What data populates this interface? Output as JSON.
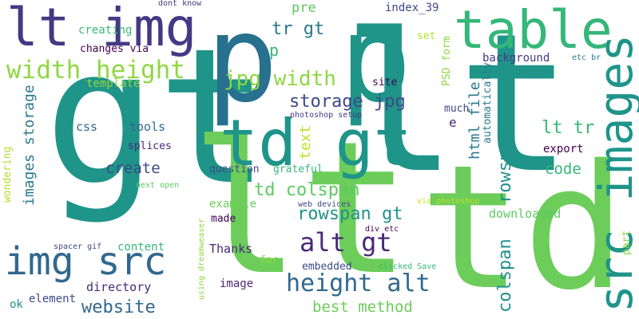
{
  "words": [
    {
      "id": "gt-large",
      "text": "gt",
      "color": "#1f9489"
    },
    {
      "id": "lt-large",
      "text": "lt",
      "color": "#6ccd5a"
    },
    {
      "id": "td-large",
      "text": "td",
      "color": "#6ccd5a"
    },
    {
      "id": "lt-center",
      "text": "lt",
      "color": "#1f9489"
    },
    {
      "id": "p-1",
      "text": "p",
      "color": "#27708e"
    },
    {
      "id": "p-2",
      "text": "p",
      "color": "#1f9489"
    },
    {
      "id": "lt-img",
      "text": "lt img",
      "color": "#443983"
    },
    {
      "id": "table",
      "text": "table",
      "color": "#35b779"
    },
    {
      "id": "src-images",
      "text": "src images",
      "color": "#1f9489"
    },
    {
      "id": "td-gt",
      "text": "td gt",
      "color": "#1f9489"
    },
    {
      "id": "img-src",
      "text": "img src",
      "color": "#31688e"
    },
    {
      "id": "width-height",
      "text": "width height",
      "color": "#90d743"
    },
    {
      "id": "jpg-width",
      "text": "jpg width",
      "color": "#90d743"
    },
    {
      "id": "height-alt",
      "text": "height alt",
      "color": "#31688e"
    },
    {
      "id": "alt-gt",
      "text": "alt gt",
      "color": "#482878"
    },
    {
      "id": "rowspan-gt",
      "text": "rowspan gt",
      "color": "#21918c"
    },
    {
      "id": "td-colspan",
      "text": "td colspan",
      "color": "#5ec962"
    },
    {
      "id": "storage-jpg",
      "text": "storage jpg",
      "color": "#3e4989"
    },
    {
      "id": "tr-gt",
      "text": "tr gt",
      "color": "#2a788e"
    },
    {
      "id": "p-small",
      "text": "p",
      "color": "#35b779"
    },
    {
      "id": "pre",
      "text": "pre",
      "color": "#5ec962"
    },
    {
      "id": "index-39",
      "text": "index_39",
      "color": "#3e4989"
    },
    {
      "id": "dont-know",
      "text": "dont know",
      "color": "#443983"
    },
    {
      "id": "creating",
      "text": "creating",
      "color": "#3aba76"
    },
    {
      "id": "changes-via",
      "text": "changes via",
      "color": "#440154"
    },
    {
      "id": "template",
      "text": "template",
      "color": "#90d743"
    },
    {
      "id": "images-storage",
      "text": "images storage",
      "color": "#2a788e"
    },
    {
      "id": "css",
      "text": "css",
      "color": "#31688e"
    },
    {
      "id": "tools",
      "text": "tools",
      "color": "#31688e"
    },
    {
      "id": "splices",
      "text": "splices",
      "color": "#482878"
    },
    {
      "id": "create",
      "text": "create",
      "color": "#3e4989"
    },
    {
      "id": "wondering",
      "text": "wondering",
      "color": "#b5de2b"
    },
    {
      "id": "next-open",
      "text": "next open",
      "color": "#5ec962"
    },
    {
      "id": "question",
      "text": "question",
      "color": "#3e4989"
    },
    {
      "id": "grateful",
      "text": "grateful",
      "color": "#35b779"
    },
    {
      "id": "text",
      "text": "text",
      "color": "#c2df23"
    },
    {
      "id": "html-file",
      "text": "html file",
      "color": "#2a788e"
    },
    {
      "id": "rowspan",
      "text": "rowspan",
      "color": "#21918c"
    },
    {
      "id": "colspan",
      "text": "colspan",
      "color": "#21918c"
    },
    {
      "id": "psd-form",
      "text": "PSD form",
      "color": "#90d743"
    },
    {
      "id": "automatically",
      "text": "automatically",
      "color": "#2a788e"
    },
    {
      "id": "site",
      "text": "site",
      "color": "#440154"
    },
    {
      "id": "e",
      "text": "e",
      "color": "#482878"
    },
    {
      "id": "photoshop-setup",
      "text": "photoshop setup",
      "color": "#443983"
    },
    {
      "id": "much",
      "text": "much",
      "color": "#3e4989"
    },
    {
      "id": "set",
      "text": "set",
      "color": "#b5de2b"
    },
    {
      "id": "background",
      "text": "background",
      "color": "#443983"
    },
    {
      "id": "etc-br",
      "text": "etc br",
      "color": "#27808e"
    },
    {
      "id": "lt-tr",
      "text": "lt tr",
      "color": "#35b779"
    },
    {
      "id": "export",
      "text": "export",
      "color": "#440154"
    },
    {
      "id": "code",
      "text": "code",
      "color": "#35b779"
    },
    {
      "id": "downloaded",
      "text": "downloaded",
      "color": "#5ec962"
    },
    {
      "id": "part",
      "text": "part",
      "color": "#90d743"
    },
    {
      "id": "example",
      "text": "example",
      "color": "#6ccd5a"
    },
    {
      "id": "web-devices",
      "text": "web devices",
      "color": "#3e4989"
    },
    {
      "id": "via-photoshop",
      "text": "via photoshop",
      "color": "#c2df23"
    },
    {
      "id": "made",
      "text": "made",
      "color": "#440154"
    },
    {
      "id": "div-etc",
      "text": "div etc",
      "color": "#440154"
    },
    {
      "id": "thanks",
      "text": "Thanks",
      "color": "#482878"
    },
    {
      "id": "far",
      "text": "far",
      "color": "#90d743"
    },
    {
      "id": "embedded",
      "text": "embedded",
      "color": "#3e4989"
    },
    {
      "id": "clicked-save",
      "text": "clicked Save",
      "color": "#35b779"
    },
    {
      "id": "using-dreamweaver",
      "text": "using dreamweaver",
      "color": "#90d743"
    },
    {
      "id": "spacer-gif",
      "text": "spacer gif",
      "color": "#3e4989"
    },
    {
      "id": "content",
      "text": "content",
      "color": "#35b779"
    },
    {
      "id": "directory",
      "text": "directory",
      "color": "#482878"
    },
    {
      "id": "image",
      "text": "image",
      "color": "#482878"
    },
    {
      "id": "element",
      "text": "element",
      "color": "#3e4989"
    },
    {
      "id": "ok",
      "text": "ok",
      "color": "#21918c"
    },
    {
      "id": "website",
      "text": "website",
      "color": "#31688e"
    },
    {
      "id": "best-method",
      "text": "best method",
      "color": "#6ccd5a"
    }
  ]
}
